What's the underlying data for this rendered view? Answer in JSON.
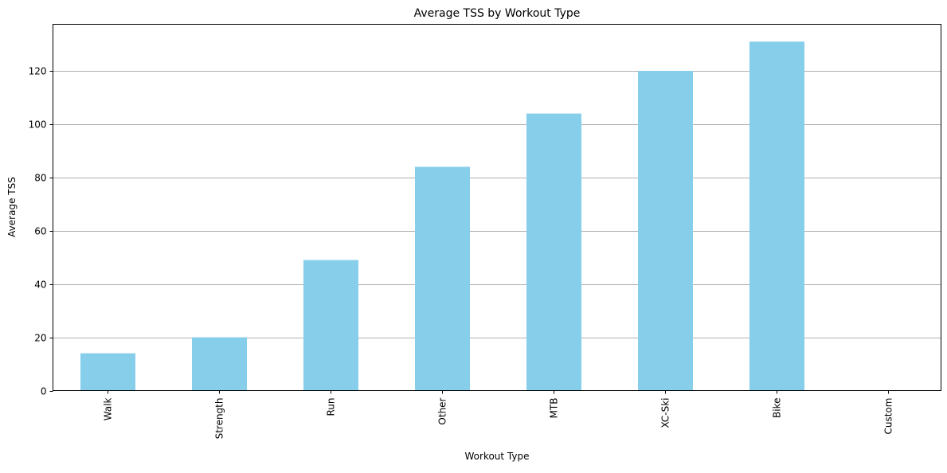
{
  "chart_data": {
    "type": "bar",
    "title": "Average TSS by Workout Type",
    "xlabel": "Workout Type",
    "ylabel": "Average TSS",
    "categories": [
      "Walk",
      "Strength",
      "Run",
      "Other",
      "MTB",
      "XC-Ski",
      "Bike",
      "Custom"
    ],
    "values": [
      14,
      20,
      49,
      84,
      104,
      120,
      131,
      0
    ],
    "ylim": [
      0,
      137.5
    ],
    "yticks": [
      0,
      20,
      40,
      60,
      80,
      100,
      120
    ],
    "grid": "y",
    "legend": "none",
    "colors": {
      "bar": "#87ceeb",
      "grid": "#b0b0b0",
      "axis": "#000000"
    }
  }
}
